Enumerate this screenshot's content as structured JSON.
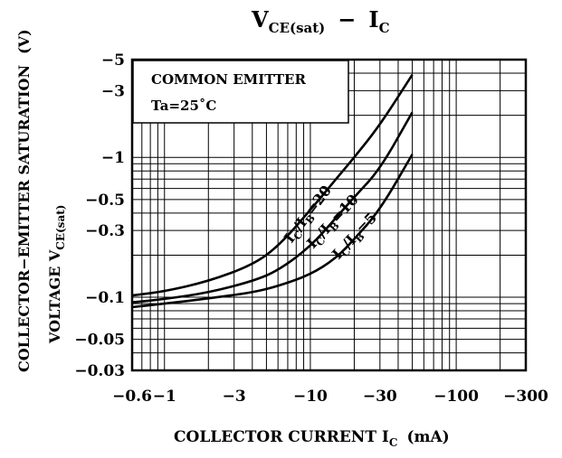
{
  "chart_data": {
    "type": "line",
    "title": "V_CE(sat) − I_C",
    "title_main": "V",
    "title_sub": "CE(sat)",
    "title_dash": "−",
    "title_ic": "I",
    "title_ic_sub": "C",
    "ylabel_line1": "COLLECTOR−EMITTER  SATURATION",
    "ylabel_unit": "(V)",
    "ylabel_line2": "VOLTAGE  V",
    "ylabel_line2_sub": "CE(sat)",
    "xlabel": "COLLECTOR  CURRENT  I",
    "xlabel_sub": "C",
    "xlabel_unit": "(mA)",
    "x_scale": "log",
    "y_scale": "log",
    "xlim": [
      -0.6,
      -300
    ],
    "ylim": [
      -0.03,
      -5
    ],
    "grid": true,
    "legend_placement": "top-left",
    "annotation_line1": "COMMON  EMITTER",
    "annotation_line2": "Ta=25˚C",
    "x_ticks": [
      {
        "value": -0.6,
        "label": "−0.6"
      },
      {
        "value": -1,
        "label": "−1"
      },
      {
        "value": -3,
        "label": "−3"
      },
      {
        "value": -10,
        "label": "−10"
      },
      {
        "value": -30,
        "label": "−30"
      },
      {
        "value": -100,
        "label": "−100"
      },
      {
        "value": -300,
        "label": "−300"
      }
    ],
    "y_ticks": [
      {
        "value": -5,
        "label": "−5"
      },
      {
        "value": -3,
        "label": "−3"
      },
      {
        "value": -1,
        "label": "−1"
      },
      {
        "value": -0.5,
        "label": "−0.5"
      },
      {
        "value": -0.3,
        "label": "−0.3"
      },
      {
        "value": -0.1,
        "label": "−0.1"
      },
      {
        "value": -0.05,
        "label": "−0.05"
      },
      {
        "value": -0.03,
        "label": "−0.03"
      }
    ],
    "series": [
      {
        "name": "IC/IB=20",
        "label_main": "I",
        "label_sub1": "C",
        "label_sep": "/I",
        "label_sub2": "B",
        "label_eq": "=20",
        "x": [
          -0.6,
          -1,
          -2,
          -4,
          -6,
          -10,
          -15,
          -20,
          -30,
          -50
        ],
        "y": [
          -0.103,
          -0.11,
          -0.13,
          -0.17,
          -0.23,
          -0.42,
          -0.7,
          -1.0,
          -1.7,
          -3.9
        ]
      },
      {
        "name": "IC/IB=10",
        "label_main": "I",
        "label_sub1": "C",
        "label_sep": "/I",
        "label_sub2": "B",
        "label_eq": "=10",
        "x": [
          -0.6,
          -1,
          -2,
          -4,
          -6,
          -10,
          -15,
          -20,
          -30,
          -50
        ],
        "y": [
          -0.092,
          -0.097,
          -0.108,
          -0.13,
          -0.155,
          -0.23,
          -0.37,
          -0.52,
          -0.82,
          -2.1
        ]
      },
      {
        "name": "IC/IB=5",
        "label_main": "I",
        "label_sub1": "C",
        "label_sep": "/I",
        "label_sub2": "B",
        "label_eq": "=5",
        "x": [
          -0.6,
          -1,
          -2,
          -4,
          -6,
          -10,
          -15,
          -20,
          -30,
          -50
        ],
        "y": [
          -0.085,
          -0.09,
          -0.098,
          -0.108,
          -0.12,
          -0.145,
          -0.19,
          -0.26,
          -0.42,
          -1.05
        ]
      }
    ]
  }
}
